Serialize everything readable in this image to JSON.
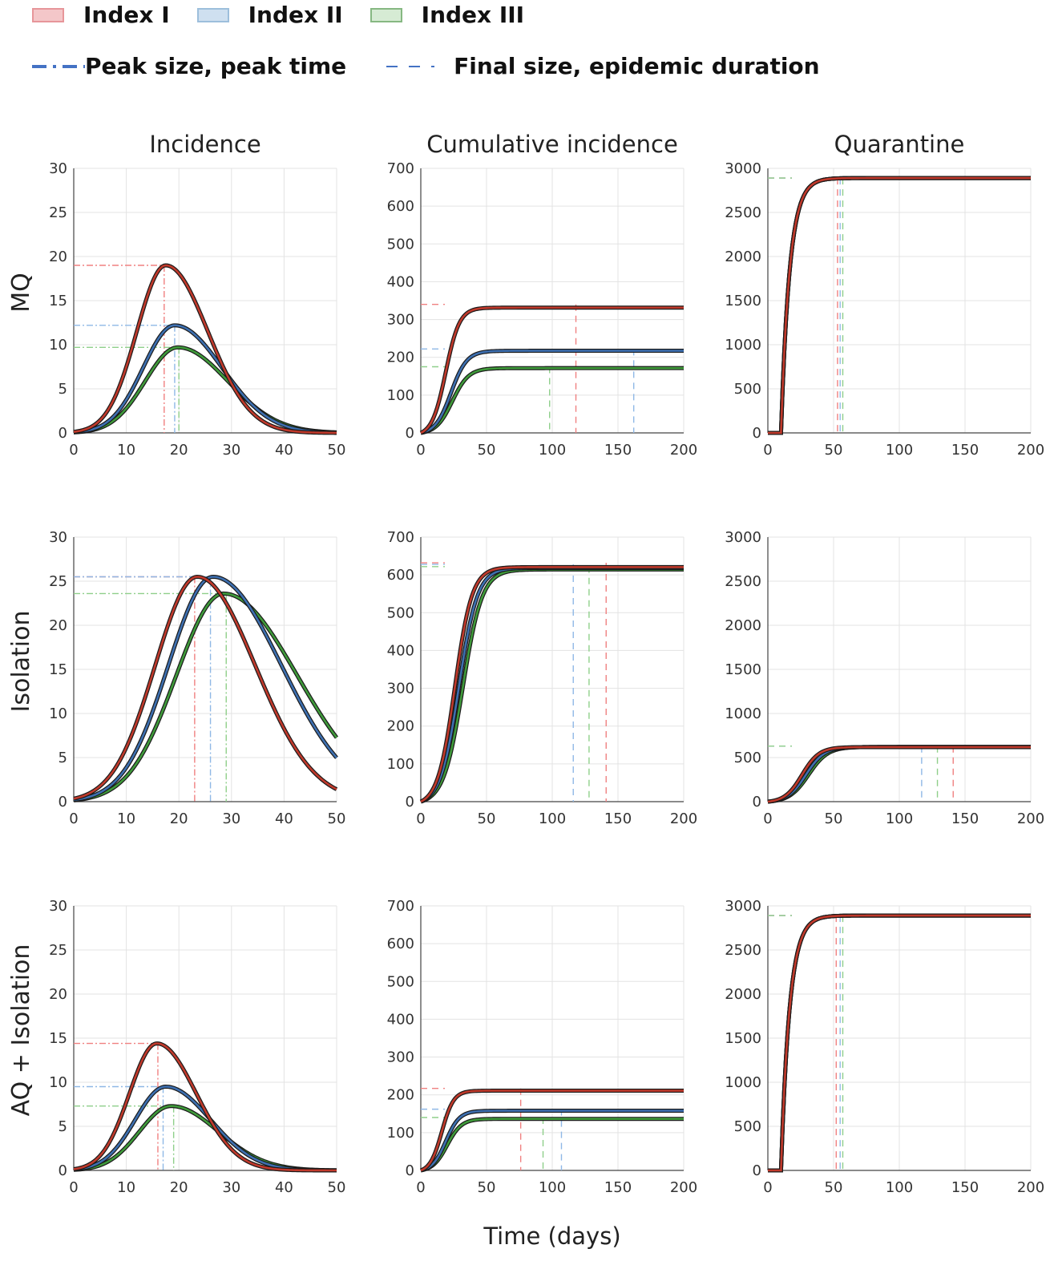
{
  "legend": {
    "items": [
      {
        "label": "Index  I",
        "fill": "#f4c7c9",
        "stroke": "#e7969a"
      },
      {
        "label": "Index  II",
        "fill": "#cfe0f0",
        "stroke": "#9dbfdc"
      },
      {
        "label": "Index  III",
        "fill": "#d6ebd4",
        "stroke": "#86b882"
      }
    ],
    "peak_label": "Peak size, peak time",
    "final_label": "Final size, epidemic duration",
    "line_color": "#4472c4"
  },
  "colors": {
    "index1": "#c0392b",
    "index2": "#3d6fb0",
    "index3": "#3f9a3a",
    "index1_light": "#f08080",
    "index2_light": "#8fb8e6",
    "index3_light": "#8fcf8a",
    "grid": "#e3e3e3"
  },
  "chart_data": {
    "x_axis_label": "Time (days)",
    "column_titles": [
      "Incidence",
      "Cumulative incidence",
      "Quarantine"
    ],
    "row_labels": [
      "MQ",
      "Isolation",
      "AQ + Isolation"
    ],
    "panels": [
      {
        "row": 0,
        "col": 0,
        "type": "line",
        "xlim": [
          0,
          50
        ],
        "ylim": [
          0,
          30
        ],
        "xticks": [
          0,
          10,
          20,
          30,
          40,
          50
        ],
        "yticks": [
          0,
          5,
          10,
          15,
          20,
          25,
          30
        ],
        "series": [
          {
            "name": "Index I",
            "kind": "peak",
            "peak": 19,
            "peak_time": 17.5,
            "sigma_left": 5.5,
            "sigma_right": 8
          },
          {
            "name": "Index II",
            "kind": "peak",
            "peak": 12.2,
            "peak_time": 19.2,
            "sigma_left": 6,
            "sigma_right": 9
          },
          {
            "name": "Index III",
            "kind": "peak",
            "peak": 9.7,
            "peak_time": 19.8,
            "sigma_left": 6.2,
            "sigma_right": 9.5
          }
        ],
        "markers": [
          {
            "series": 0,
            "type": "peak",
            "x": 17.2,
            "y": 19
          },
          {
            "series": 1,
            "type": "peak",
            "x": 19.2,
            "y": 12.2
          },
          {
            "series": 2,
            "type": "peak",
            "x": 20,
            "y": 9.7
          }
        ]
      },
      {
        "row": 0,
        "col": 1,
        "type": "line",
        "xlim": [
          0,
          200
        ],
        "ylim": [
          0,
          700
        ],
        "xticks": [
          0,
          50,
          100,
          150,
          200
        ],
        "yticks": [
          0,
          100,
          200,
          300,
          400,
          500,
          600,
          700
        ],
        "series": [
          {
            "name": "Index I",
            "kind": "logistic",
            "final": 340,
            "mid": 19,
            "scale": 5.2
          },
          {
            "name": "Index II",
            "kind": "logistic",
            "final": 222,
            "mid": 23,
            "scale": 6
          },
          {
            "name": "Index III",
            "kind": "logistic",
            "final": 175,
            "mid": 24,
            "scale": 6.2
          }
        ],
        "markers": [
          {
            "series": 0,
            "type": "final",
            "x": 118,
            "y": 340
          },
          {
            "series": 1,
            "type": "final",
            "x": 162,
            "y": 222
          },
          {
            "series": 2,
            "type": "final",
            "x": 98,
            "y": 175
          }
        ]
      },
      {
        "row": 0,
        "col": 2,
        "type": "line",
        "xlim": [
          0,
          200
        ],
        "ylim": [
          0,
          3000
        ],
        "xticks": [
          0,
          50,
          100,
          150,
          200
        ],
        "yticks": [
          0,
          500,
          1000,
          1500,
          2000,
          2500,
          3000
        ],
        "series": [
          {
            "name": "Index I",
            "kind": "saturate",
            "final": 2890,
            "start": 10,
            "tau": 6.5
          },
          {
            "name": "Index II",
            "kind": "saturate",
            "final": 2890,
            "start": 10,
            "tau": 6.5
          },
          {
            "name": "Index III",
            "kind": "saturate",
            "final": 2890,
            "start": 10,
            "tau": 6.5
          }
        ],
        "markers": [
          {
            "series": 0,
            "type": "final",
            "x": 53,
            "y": 2890
          },
          {
            "series": 1,
            "type": "final",
            "x": 55,
            "y": 2890
          },
          {
            "series": 2,
            "type": "final",
            "x": 57,
            "y": 2890
          }
        ]
      },
      {
        "row": 1,
        "col": 0,
        "type": "line",
        "xlim": [
          0,
          50
        ],
        "ylim": [
          0,
          30
        ],
        "xticks": [
          0,
          10,
          20,
          30,
          40,
          50
        ],
        "yticks": [
          0,
          5,
          10,
          15,
          20,
          25,
          30
        ],
        "series": [
          {
            "name": "Index I",
            "kind": "peak",
            "peak": 25.5,
            "peak_time": 23.5,
            "sigma_left": 8,
            "sigma_right": 11
          },
          {
            "name": "Index II",
            "kind": "peak",
            "peak": 25.5,
            "peak_time": 26.5,
            "sigma_left": 8.5,
            "sigma_right": 13
          },
          {
            "name": "Index III",
            "kind": "peak",
            "peak": 23.6,
            "peak_time": 28.5,
            "sigma_left": 9,
            "sigma_right": 14
          }
        ],
        "markers": [
          {
            "series": 0,
            "type": "peak",
            "x": 23,
            "y": 25.5
          },
          {
            "series": 1,
            "type": "peak",
            "x": 26,
            "y": 25.5
          },
          {
            "series": 2,
            "type": "peak",
            "x": 29,
            "y": 23.6
          }
        ]
      },
      {
        "row": 1,
        "col": 1,
        "type": "line",
        "xlim": [
          0,
          200
        ],
        "ylim": [
          0,
          700
        ],
        "xticks": [
          0,
          50,
          100,
          150,
          200
        ],
        "yticks": [
          0,
          100,
          200,
          300,
          400,
          500,
          600,
          700
        ],
        "series": [
          {
            "name": "Index I",
            "kind": "logistic",
            "final": 632,
            "mid": 26,
            "scale": 6.5
          },
          {
            "name": "Index II",
            "kind": "logistic",
            "final": 628,
            "mid": 29,
            "scale": 7
          },
          {
            "name": "Index III",
            "kind": "logistic",
            "final": 622,
            "mid": 32,
            "scale": 7.3
          }
        ],
        "markers": [
          {
            "series": 0,
            "type": "final",
            "x": 141,
            "y": 632
          },
          {
            "series": 1,
            "type": "final",
            "x": 116,
            "y": 628
          },
          {
            "series": 2,
            "type": "final",
            "x": 128,
            "y": 622
          }
        ]
      },
      {
        "row": 1,
        "col": 2,
        "type": "line",
        "xlim": [
          0,
          200
        ],
        "ylim": [
          0,
          3000
        ],
        "xticks": [
          0,
          50,
          100,
          150,
          200
        ],
        "yticks": [
          0,
          500,
          1000,
          1500,
          2000,
          2500,
          3000
        ],
        "series": [
          {
            "name": "Index I",
            "kind": "logistic",
            "final": 630,
            "mid": 26,
            "scale": 6.5
          },
          {
            "name": "Index II",
            "kind": "logistic",
            "final": 630,
            "mid": 29,
            "scale": 7
          },
          {
            "name": "Index III",
            "kind": "logistic",
            "final": 630,
            "mid": 31,
            "scale": 7.3
          }
        ],
        "markers": [
          {
            "series": 0,
            "type": "final",
            "x": 141,
            "y": 630
          },
          {
            "series": 1,
            "type": "final",
            "x": 117,
            "y": 630
          },
          {
            "series": 2,
            "type": "final",
            "x": 129,
            "y": 630
          }
        ]
      },
      {
        "row": 2,
        "col": 0,
        "type": "line",
        "xlim": [
          0,
          50
        ],
        "ylim": [
          0,
          30
        ],
        "xticks": [
          0,
          10,
          20,
          30,
          40,
          50
        ],
        "yticks": [
          0,
          5,
          10,
          15,
          20,
          25,
          30
        ],
        "series": [
          {
            "name": "Index I",
            "kind": "peak",
            "peak": 14.4,
            "peak_time": 15.8,
            "sigma_left": 5.2,
            "sigma_right": 7.5
          },
          {
            "name": "Index II",
            "kind": "peak",
            "peak": 9.5,
            "peak_time": 17.5,
            "sigma_left": 5.8,
            "sigma_right": 8.5
          },
          {
            "name": "Index III",
            "kind": "peak",
            "peak": 7.3,
            "peak_time": 18.5,
            "sigma_left": 6,
            "sigma_right": 9
          }
        ],
        "markers": [
          {
            "series": 0,
            "type": "peak",
            "x": 16,
            "y": 14.4
          },
          {
            "series": 1,
            "type": "peak",
            "x": 17,
            "y": 9.5
          },
          {
            "series": 2,
            "type": "peak",
            "x": 19,
            "y": 7.3
          }
        ]
      },
      {
        "row": 2,
        "col": 1,
        "type": "line",
        "xlim": [
          0,
          200
        ],
        "ylim": [
          0,
          700
        ],
        "xticks": [
          0,
          50,
          100,
          150,
          200
        ],
        "yticks": [
          0,
          100,
          200,
          300,
          400,
          500,
          600,
          700
        ],
        "series": [
          {
            "name": "Index I",
            "kind": "logistic",
            "final": 217,
            "mid": 16,
            "scale": 4.5
          },
          {
            "name": "Index II",
            "kind": "logistic",
            "final": 162,
            "mid": 19,
            "scale": 5.2
          },
          {
            "name": "Index III",
            "kind": "logistic",
            "final": 140,
            "mid": 20,
            "scale": 5.5
          }
        ],
        "markers": [
          {
            "series": 0,
            "type": "final",
            "x": 76,
            "y": 217
          },
          {
            "series": 1,
            "type": "final",
            "x": 107,
            "y": 162
          },
          {
            "series": 2,
            "type": "final",
            "x": 93,
            "y": 140
          }
        ]
      },
      {
        "row": 2,
        "col": 2,
        "type": "line",
        "xlim": [
          0,
          200
        ],
        "ylim": [
          0,
          3000
        ],
        "xticks": [
          0,
          50,
          100,
          150,
          200
        ],
        "yticks": [
          0,
          500,
          1000,
          1500,
          2000,
          2500,
          3000
        ],
        "series": [
          {
            "name": "Index I",
            "kind": "saturate",
            "final": 2890,
            "start": 10,
            "tau": 6.5
          },
          {
            "name": "Index II",
            "kind": "saturate",
            "final": 2890,
            "start": 10,
            "tau": 6.5
          },
          {
            "name": "Index III",
            "kind": "saturate",
            "final": 2890,
            "start": 10,
            "tau": 6.5
          }
        ],
        "markers": [
          {
            "series": 0,
            "type": "final",
            "x": 52,
            "y": 2890
          },
          {
            "series": 1,
            "type": "final",
            "x": 55,
            "y": 2890
          },
          {
            "series": 2,
            "type": "final",
            "x": 57,
            "y": 2890
          }
        ]
      }
    ]
  }
}
